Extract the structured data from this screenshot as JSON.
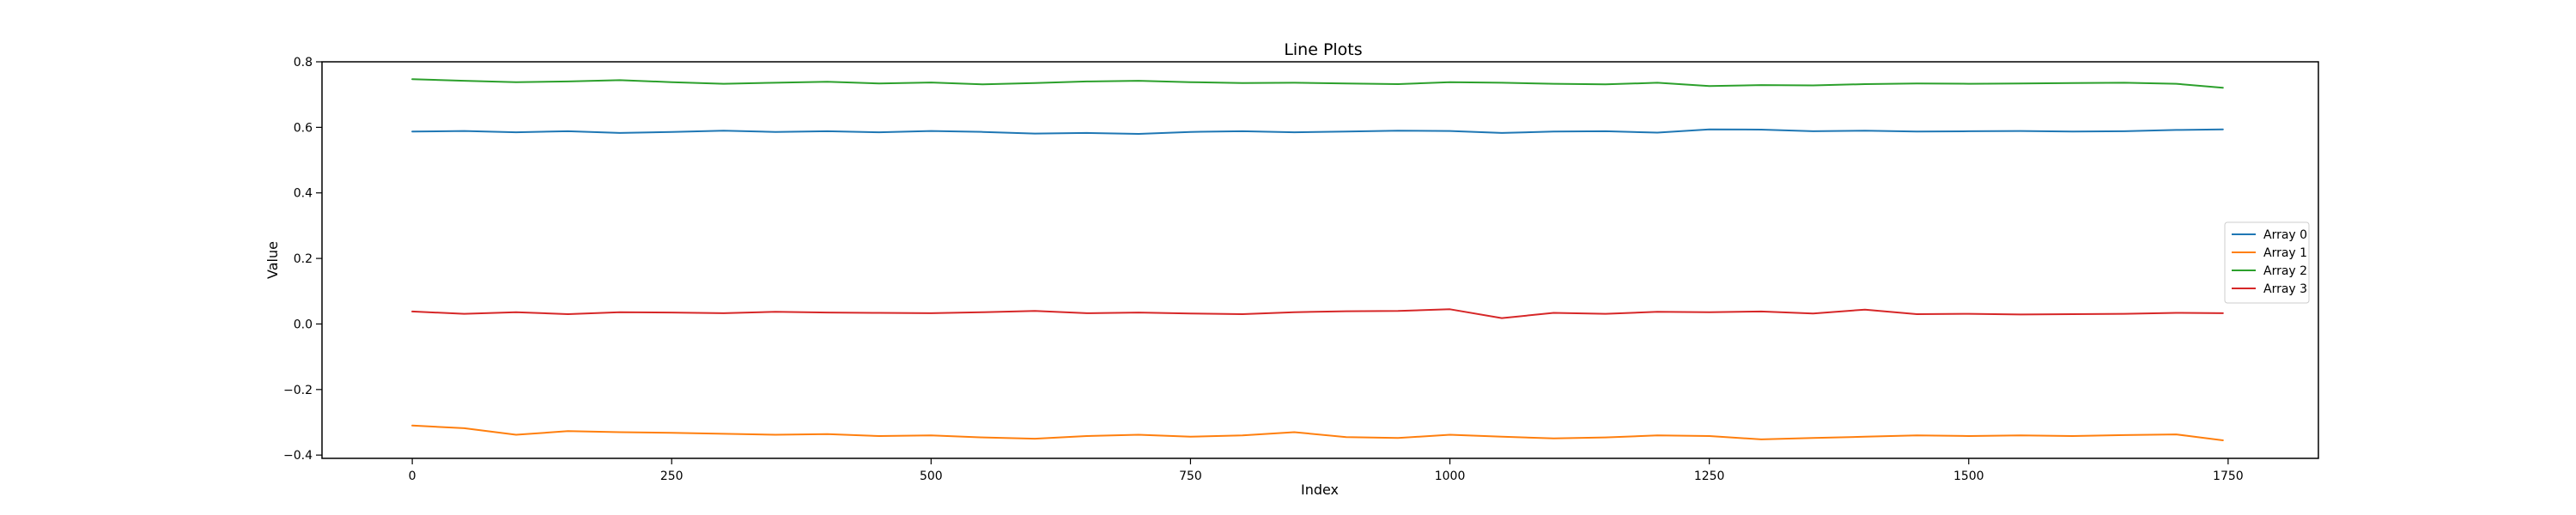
{
  "chart_data": {
    "type": "line",
    "title": "Line Plots",
    "xlabel": "Index",
    "ylabel": "Value",
    "xlim": [
      -87,
      1837
    ],
    "ylim": [
      -0.41,
      0.8
    ],
    "x_ticks": [
      0,
      250,
      500,
      750,
      1000,
      1250,
      1500,
      1750
    ],
    "x_tick_labels": [
      "0",
      "250",
      "500",
      "750",
      "1000",
      "1250",
      "1500",
      "1750"
    ],
    "y_ticks": [
      -0.4,
      -0.2,
      0.0,
      0.2,
      0.4,
      0.6,
      0.8
    ],
    "y_tick_labels": [
      "−0.4",
      "−0.2",
      "0.0",
      "0.2",
      "0.4",
      "0.6",
      "0.8"
    ],
    "grid": false,
    "legend_position": "center-right",
    "x": [
      0,
      50,
      100,
      150,
      200,
      250,
      300,
      350,
      400,
      450,
      500,
      550,
      600,
      650,
      700,
      750,
      800,
      850,
      900,
      950,
      1000,
      1050,
      1100,
      1150,
      1200,
      1250,
      1300,
      1350,
      1400,
      1450,
      1500,
      1550,
      1600,
      1650,
      1700,
      1745
    ],
    "series": [
      {
        "name": "Array 0",
        "color": "#1f77b4",
        "values": [
          0.587,
          0.589,
          0.585,
          0.588,
          0.583,
          0.586,
          0.59,
          0.586,
          0.588,
          0.585,
          0.589,
          0.586,
          0.581,
          0.583,
          0.58,
          0.586,
          0.588,
          0.585,
          0.587,
          0.59,
          0.589,
          0.583,
          0.587,
          0.588,
          0.584,
          0.594,
          0.593,
          0.588,
          0.59,
          0.587,
          0.588,
          0.589,
          0.587,
          0.588,
          0.592,
          0.594
        ]
      },
      {
        "name": "Array 1",
        "color": "#ff7f0e",
        "values": [
          -0.31,
          -0.318,
          -0.338,
          -0.327,
          -0.33,
          -0.332,
          -0.335,
          -0.338,
          -0.336,
          -0.342,
          -0.34,
          -0.346,
          -0.35,
          -0.342,
          -0.338,
          -0.344,
          -0.34,
          -0.33,
          -0.345,
          -0.348,
          -0.338,
          -0.344,
          -0.349,
          -0.346,
          -0.34,
          -0.342,
          -0.352,
          -0.348,
          -0.344,
          -0.34,
          -0.342,
          -0.34,
          -0.342,
          -0.339,
          -0.337,
          -0.355
        ]
      },
      {
        "name": "Array 2",
        "color": "#2ca02c",
        "values": [
          0.747,
          0.742,
          0.738,
          0.74,
          0.744,
          0.738,
          0.733,
          0.736,
          0.739,
          0.734,
          0.737,
          0.731,
          0.735,
          0.74,
          0.742,
          0.738,
          0.735,
          0.736,
          0.734,
          0.732,
          0.738,
          0.736,
          0.733,
          0.731,
          0.736,
          0.726,
          0.729,
          0.728,
          0.732,
          0.734,
          0.733,
          0.734,
          0.735,
          0.736,
          0.733,
          0.721
        ]
      },
      {
        "name": "Array 3",
        "color": "#d62728",
        "values": [
          0.038,
          0.031,
          0.036,
          0.03,
          0.036,
          0.035,
          0.033,
          0.037,
          0.035,
          0.034,
          0.033,
          0.036,
          0.04,
          0.033,
          0.035,
          0.032,
          0.03,
          0.036,
          0.039,
          0.04,
          0.045,
          0.018,
          0.034,
          0.031,
          0.037,
          0.036,
          0.038,
          0.032,
          0.044,
          0.03,
          0.031,
          0.029,
          0.03,
          0.031,
          0.034,
          0.033
        ]
      }
    ]
  }
}
